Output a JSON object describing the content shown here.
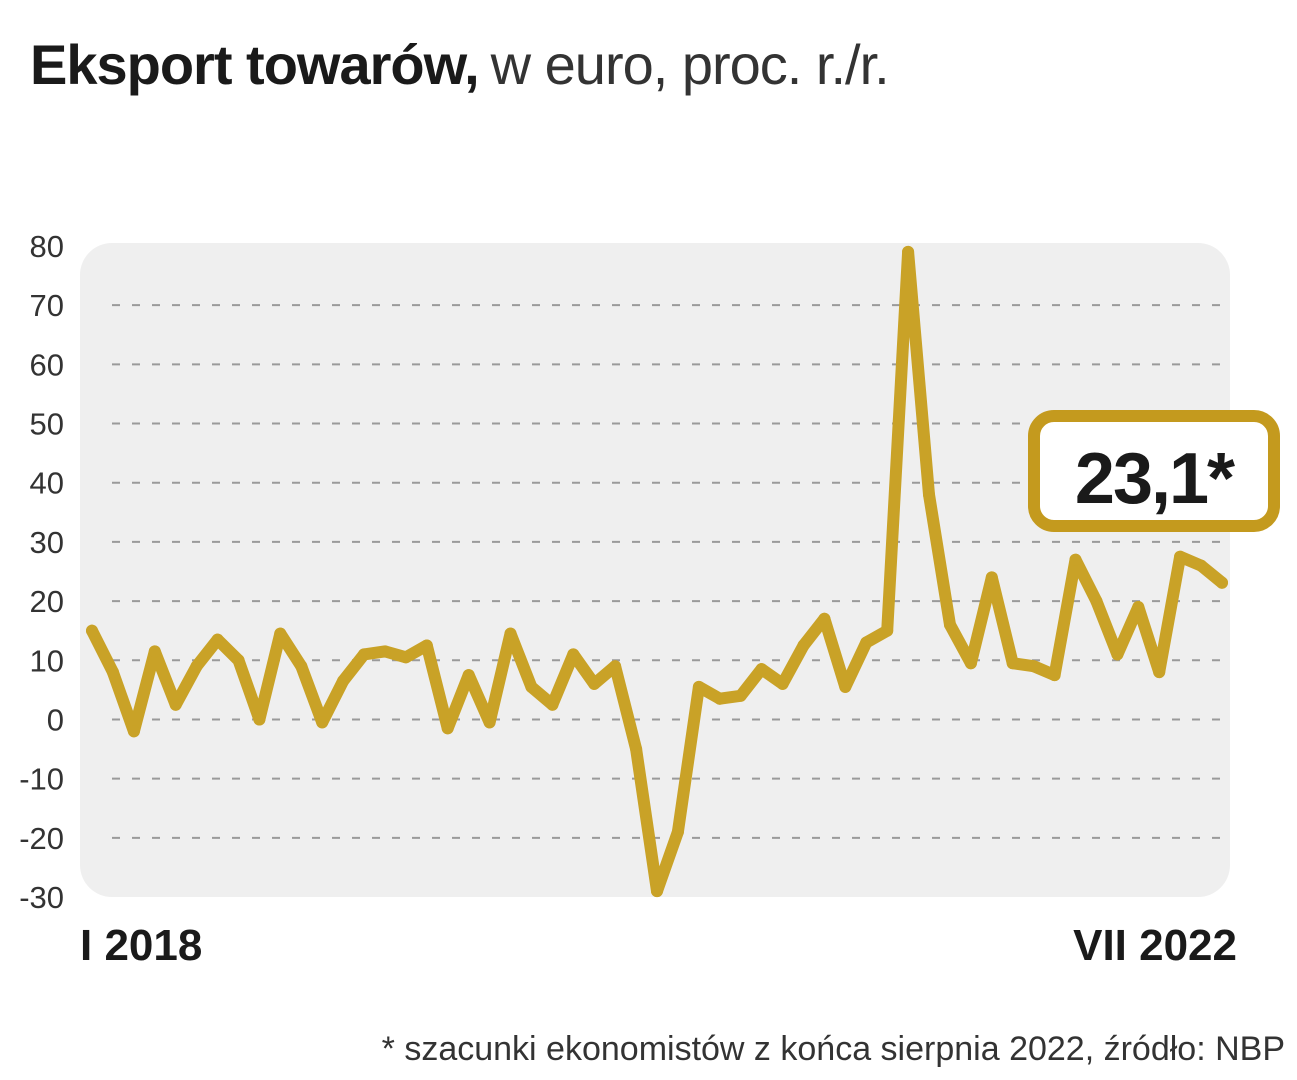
{
  "title_bold": "Eksport towarów,",
  "title_rest": "w euro, proc. r./r.",
  "footnote": "* szacunki ekonomistów z końca sierpnia 2022, źródło: NBP",
  "colors": {
    "line": "#c9a227",
    "plot_bg": "#efefef",
    "grid": "#9a9a9a",
    "callout_border": "#c49a1e"
  },
  "chart_data": {
    "type": "line",
    "title": "Eksport towarów, w euro, proc. r./r.",
    "x_start_label": "I 2018",
    "x_end_label": "VII 2022",
    "ylim": [
      -30,
      80
    ],
    "yticks": [
      80,
      70,
      60,
      50,
      40,
      30,
      20,
      10,
      0,
      -10,
      -20,
      -30
    ],
    "ytick_labels": [
      "80",
      "70",
      "60",
      "50",
      "40",
      "30",
      "20",
      "10",
      "0",
      "-10",
      "-20",
      "-30"
    ],
    "grid": "dashed horizontal",
    "series": [
      {
        "name": "Eksport towarów",
        "values": [
          15,
          8,
          -2,
          11.5,
          2.5,
          9,
          13.5,
          10,
          0,
          14.5,
          9,
          -0.5,
          6.5,
          11,
          11.5,
          10.5,
          12.5,
          -1.5,
          7.5,
          -0.5,
          14.5,
          5.5,
          2.5,
          11,
          6,
          9,
          -5,
          -29,
          -19,
          5.5,
          3.5,
          4,
          8.5,
          6,
          12.5,
          17,
          5.5,
          13,
          15,
          79,
          38,
          16,
          9.5,
          24,
          9.5,
          9,
          7.5,
          27,
          20,
          11,
          19,
          8,
          27.5,
          26,
          23.1
        ]
      }
    ],
    "annotation": "23,1*"
  }
}
